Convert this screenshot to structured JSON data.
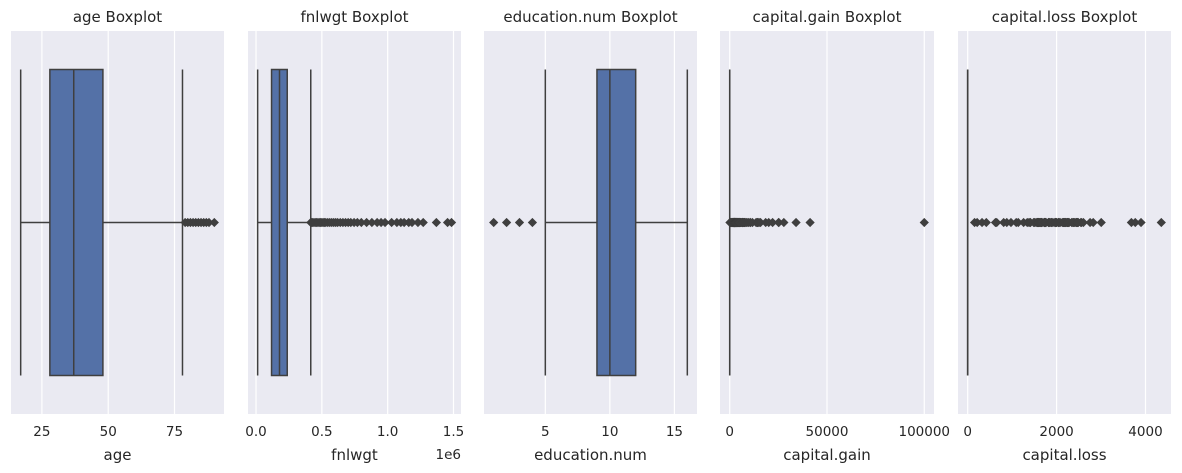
{
  "chart_data": [
    {
      "type": "boxplot",
      "title": "age Boxplot",
      "xlabel": "age",
      "xlim": [
        13.35,
        93.65
      ],
      "ticks": [
        25,
        50,
        75
      ],
      "tick_labels": [
        "25",
        "50",
        "75"
      ],
      "offset_label": "",
      "box": {
        "whisker_low": 17,
        "q1": 28,
        "median": 37,
        "q3": 48,
        "whisker_high": 78
      },
      "outliers": [
        79,
        80,
        81,
        82,
        83,
        84,
        85,
        86,
        87,
        88,
        90
      ]
    },
    {
      "type": "boxplot",
      "title": "fnlwgt Boxplot",
      "xlabel": "fnlwgt",
      "xlim": [
        -61000,
        1557000
      ],
      "ticks": [
        0,
        500000,
        1000000,
        1500000
      ],
      "tick_labels": [
        "0.0",
        "0.5",
        "1.0",
        "1.5"
      ],
      "offset_label": "1e6",
      "box": {
        "whisker_low": 12285,
        "q1": 117827,
        "median": 178356,
        "q3": 237051,
        "whisker_high": 415742
      },
      "outliers": [
        416000,
        422000,
        430000,
        440000,
        450000,
        460000,
        470000,
        480000,
        490000,
        500000,
        510000,
        520000,
        530000,
        545000,
        560000,
        575000,
        590000,
        605000,
        620000,
        640000,
        660000,
        680000,
        700000,
        720000,
        745000,
        770000,
        800000,
        840000,
        880000,
        920000,
        950000,
        980000,
        1030000,
        1070000,
        1100000,
        1125000,
        1160000,
        1185000,
        1230000,
        1270000,
        1370000,
        1455000,
        1485000
      ]
    },
    {
      "type": "boxplot",
      "title": "education.num Boxplot",
      "xlabel": "education.num",
      "xlim": [
        0.25,
        16.75
      ],
      "ticks": [
        5,
        10,
        15
      ],
      "tick_labels": [
        "5",
        "10",
        "15"
      ],
      "offset_label": "",
      "box": {
        "whisker_low": 5,
        "q1": 9,
        "median": 10,
        "q3": 12,
        "whisker_high": 16
      },
      "outliers": [
        1,
        2,
        3,
        4
      ]
    },
    {
      "type": "boxplot",
      "title": "capital.gain Boxplot",
      "xlabel": "capital.gain",
      "xlim": [
        -5000,
        105000
      ],
      "ticks": [
        0,
        50000,
        100000
      ],
      "tick_labels": [
        "0",
        "50000",
        "100000"
      ],
      "offset_label": "",
      "box": {
        "whisker_low": 0,
        "q1": 0,
        "median": 0,
        "q3": 0,
        "whisker_high": 0
      },
      "outliers": [
        114,
        401,
        594,
        914,
        991,
        1055,
        1151,
        1409,
        1424,
        1471,
        1506,
        1639,
        1797,
        1831,
        1848,
        2009,
        2036,
        2050,
        2062,
        2105,
        2174,
        2176,
        2202,
        2228,
        2290,
        2329,
        2346,
        2354,
        2387,
        2407,
        2414,
        2463,
        2538,
        2580,
        2597,
        2635,
        2653,
        2829,
        2885,
        2907,
        2936,
        2961,
        2964,
        2977,
        2993,
        3103,
        3137,
        3273,
        3325,
        3411,
        3418,
        3432,
        3456,
        3464,
        3471,
        3674,
        3781,
        3818,
        3887,
        3908,
        3942,
        4064,
        4101,
        4386,
        4416,
        4508,
        4650,
        4687,
        4787,
        4865,
        4931,
        4934,
        5013,
        5060,
        5178,
        5455,
        5556,
        5721,
        6097,
        6360,
        6418,
        6497,
        6514,
        6723,
        6767,
        6849,
        7298,
        7430,
        7443,
        7688,
        7896,
        7978,
        8614,
        9386,
        9562,
        10520,
        10566,
        10605,
        11678,
        13550,
        14084,
        14344,
        15020,
        15024,
        15831,
        18481,
        20051,
        22040,
        25124,
        25236,
        27828,
        34095,
        41310,
        99999
      ]
    },
    {
      "type": "boxplot",
      "title": "capital.loss Boxplot",
      "xlabel": "capital.loss",
      "xlim": [
        -218,
        4574
      ],
      "ticks": [
        0,
        2000,
        4000
      ],
      "tick_labels": [
        "0",
        "2000",
        "4000"
      ],
      "offset_label": "",
      "box": {
        "whisker_low": 0,
        "q1": 0,
        "median": 0,
        "q3": 0,
        "whisker_high": 0
      },
      "outliers": [
        155,
        213,
        323,
        419,
        625,
        653,
        810,
        880,
        974,
        1092,
        1138,
        1258,
        1340,
        1380,
        1408,
        1411,
        1485,
        1504,
        1539,
        1564,
        1573,
        1579,
        1590,
        1594,
        1602,
        1617,
        1628,
        1648,
        1651,
        1668,
        1669,
        1672,
        1719,
        1721,
        1726,
        1735,
        1740,
        1741,
        1755,
        1762,
        1816,
        1825,
        1844,
        1848,
        1876,
        1887,
        1902,
        1944,
        1974,
        1977,
        1980,
        2001,
        2002,
        2042,
        2051,
        2057,
        2080,
        2129,
        2149,
        2163,
        2174,
        2179,
        2201,
        2205,
        2206,
        2231,
        2238,
        2246,
        2258,
        2267,
        2282,
        2339,
        2352,
        2377,
        2392,
        2415,
        2444,
        2457,
        2467,
        2472,
        2489,
        2547,
        2559,
        2603,
        2754,
        2824,
        3004,
        3683,
        3770,
        3900,
        4356
      ]
    }
  ],
  "colors": {
    "panel_background": "#eaeaf2",
    "grid": "#ffffff",
    "box_fill": "#5471a7",
    "line": "#3f3f3f",
    "outlier": "#3f3f3f"
  }
}
